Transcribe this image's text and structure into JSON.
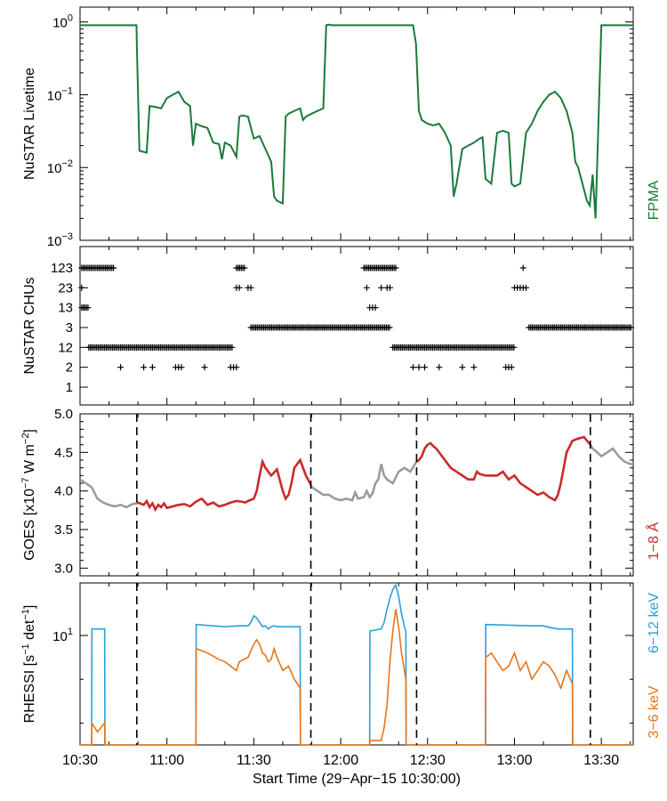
{
  "colors": {
    "livetime": "#1a7a3a",
    "goes_gray": "#999999",
    "goes_red": "#cc2a2a",
    "rhessi_high": "#2aa0d8",
    "rhessi_low": "#e8751a",
    "axis": "#000000"
  },
  "x_axis": {
    "label": "Start Time (29−Apr−15 10:30:00)",
    "range_min": [
      0,
      191
    ],
    "ticks": [
      {
        "t": 0,
        "label": "10:30"
      },
      {
        "t": 30,
        "label": "11:00"
      },
      {
        "t": 60,
        "label": "11:30"
      },
      {
        "t": 90,
        "label": "12:00"
      },
      {
        "t": 120,
        "label": "12:30"
      },
      {
        "t": 150,
        "label": "13:00"
      },
      {
        "t": 180,
        "label": "13:30"
      }
    ],
    "minor_step": 10
  },
  "chart_data": [
    {
      "type": "line",
      "name": "livetime",
      "ylabel": "NuSTAR Livetime",
      "side_label": "FPMA",
      "yscale": "log",
      "ylim": [
        0.001,
        1.6
      ],
      "yticks": [
        {
          "v": 1,
          "base": "10",
          "exp": "0"
        },
        {
          "v": 0.1,
          "base": "10",
          "exp": "−1"
        },
        {
          "v": 0.01,
          "base": "10",
          "exp": "−2"
        },
        {
          "v": 0.001,
          "base": "10",
          "exp": "−3"
        }
      ],
      "x": [
        0,
        19.5,
        19.6,
        20.5,
        23,
        24,
        26,
        28,
        30,
        32,
        34,
        36,
        38,
        39,
        40,
        42,
        44,
        46,
        48,
        49,
        50,
        52,
        54,
        55,
        56,
        58,
        60,
        62,
        64,
        66,
        67,
        68,
        70,
        71,
        72,
        74,
        76,
        77,
        78,
        80,
        82,
        84,
        85,
        86,
        87,
        88,
        90,
        100,
        115,
        116,
        117,
        118,
        120,
        122,
        124,
        126,
        128,
        129,
        130,
        132,
        134,
        136,
        138,
        139,
        140,
        142,
        144,
        146,
        148,
        149,
        150,
        152,
        154,
        156,
        158,
        160,
        162,
        164,
        166,
        168,
        170,
        171,
        172,
        174,
        175,
        176,
        177,
        178,
        180,
        191
      ],
      "values": [
        0.9,
        0.9,
        0.5,
        0.017,
        0.016,
        0.07,
        0.068,
        0.065,
        0.09,
        0.1,
        0.11,
        0.08,
        0.07,
        0.02,
        0.04,
        0.037,
        0.035,
        0.022,
        0.021,
        0.013,
        0.022,
        0.02,
        0.014,
        0.05,
        0.052,
        0.05,
        0.025,
        0.027,
        0.018,
        0.012,
        0.004,
        0.0035,
        0.0032,
        0.05,
        0.055,
        0.06,
        0.065,
        0.045,
        0.05,
        0.055,
        0.06,
        0.065,
        0.9,
        0.92,
        0.9,
        0.9,
        0.9,
        0.9,
        0.9,
        0.5,
        0.06,
        0.045,
        0.04,
        0.038,
        0.04,
        0.03,
        0.02,
        0.004,
        0.006,
        0.018,
        0.02,
        0.022,
        0.025,
        0.026,
        0.007,
        0.006,
        0.03,
        0.032,
        0.03,
        0.006,
        0.0055,
        0.006,
        0.03,
        0.04,
        0.06,
        0.08,
        0.1,
        0.11,
        0.09,
        0.06,
        0.03,
        0.012,
        0.01,
        0.005,
        0.0035,
        0.003,
        0.008,
        0.002,
        0.9,
        0.9
      ]
    },
    {
      "type": "scatter",
      "name": "chus",
      "ylabel": "NuSTAR CHUs",
      "categories": [
        "1",
        "2",
        "12",
        "3",
        "13",
        "23",
        "123"
      ],
      "marker": "+",
      "ranges": [
        {
          "level": "123",
          "from": 0,
          "to": 12
        },
        {
          "level": "13",
          "from": 0,
          "to": 3
        },
        {
          "level": "23",
          "from": 0,
          "to": 1
        },
        {
          "level": "12",
          "from": 3,
          "to": 53
        },
        {
          "level": "2",
          "points": [
            14,
            22,
            25,
            33,
            34,
            35,
            43,
            52,
            53,
            54
          ]
        },
        {
          "level": "123",
          "from": 54,
          "to": 57
        },
        {
          "level": "23",
          "points": [
            54,
            55,
            58,
            59
          ]
        },
        {
          "level": "3",
          "from": 59,
          "to": 107
        },
        {
          "level": "123",
          "from": 98,
          "to": 109
        },
        {
          "level": "23",
          "points": [
            99,
            104,
            106,
            107
          ]
        },
        {
          "level": "13",
          "points": [
            100,
            101,
            102
          ]
        },
        {
          "level": "12",
          "from": 108,
          "to": 150
        },
        {
          "level": "2",
          "points": [
            115,
            117,
            119,
            124,
            132,
            136,
            147,
            148,
            149
          ]
        },
        {
          "level": "123",
          "points": [
            153
          ]
        },
        {
          "level": "23",
          "points": [
            150,
            151,
            152,
            153,
            154
          ]
        },
        {
          "level": "3",
          "from": 155,
          "to": 191
        }
      ]
    },
    {
      "type": "line",
      "name": "goes",
      "ylabel": "GOES [x10",
      "ylabel_sup": "−7",
      "ylabel_mid": " W m",
      "ylabel_sup2": "−2",
      "ylabel_end": "]",
      "side_label": "1−8 Å",
      "ylim": [
        2.9,
        5.0
      ],
      "yticks": [
        3.0,
        3.5,
        4.0,
        4.5,
        5.0
      ],
      "yminor_step": 0.1,
      "dashed_x": [
        19.6,
        79.7,
        116.2,
        176.2
      ],
      "x": [
        0,
        2,
        4,
        6,
        8,
        10,
        12,
        14,
        16,
        18,
        19.6,
        20,
        22,
        23,
        24,
        25,
        26,
        27,
        28,
        29,
        30,
        32,
        34,
        36,
        38,
        40,
        42,
        44,
        46,
        48,
        50,
        52,
        54,
        56,
        57,
        58,
        60,
        61,
        62,
        63,
        64,
        65,
        66,
        68,
        70,
        71,
        72,
        73,
        74,
        76,
        78,
        79.7,
        80,
        82,
        84,
        86,
        88,
        90,
        92,
        94,
        95,
        96,
        98,
        99,
        100,
        101,
        102,
        103,
        104,
        105,
        106,
        108,
        110,
        112,
        114,
        116.2,
        117,
        118,
        119,
        120,
        121,
        122,
        123,
        124,
        126,
        128,
        130,
        132,
        134,
        136,
        137,
        138,
        140,
        142,
        144,
        146,
        148,
        150,
        152,
        154,
        156,
        158,
        160,
        161,
        162,
        163,
        164,
        165,
        166,
        168,
        170,
        172,
        174,
        176.2,
        177,
        178,
        180,
        182,
        184,
        186,
        188,
        190,
        191
      ],
      "values": [
        4.15,
        4.1,
        4.05,
        3.9,
        3.85,
        3.82,
        3.8,
        3.82,
        3.79,
        3.83,
        3.84,
        3.85,
        3.82,
        3.87,
        3.79,
        3.84,
        3.76,
        3.82,
        3.79,
        3.84,
        3.78,
        3.8,
        3.82,
        3.83,
        3.8,
        3.86,
        3.9,
        3.82,
        3.85,
        3.8,
        3.82,
        3.85,
        3.87,
        3.86,
        3.85,
        3.87,
        3.9,
        4.0,
        4.2,
        4.38,
        4.3,
        4.25,
        4.2,
        4.28,
        4.0,
        3.9,
        3.95,
        4.1,
        4.3,
        4.4,
        4.2,
        4.08,
        4.05,
        4.0,
        3.95,
        3.95,
        3.9,
        3.88,
        3.9,
        3.88,
        3.98,
        3.9,
        3.92,
        4.0,
        3.92,
        3.97,
        4.1,
        4.15,
        4.35,
        4.2,
        4.15,
        4.1,
        4.25,
        4.3,
        4.25,
        4.38,
        4.4,
        4.45,
        4.55,
        4.6,
        4.62,
        4.58,
        4.55,
        4.5,
        4.4,
        4.3,
        4.25,
        4.2,
        4.15,
        4.15,
        4.25,
        4.22,
        4.2,
        4.2,
        4.2,
        4.25,
        4.15,
        4.2,
        4.1,
        4.05,
        4.0,
        3.95,
        3.98,
        3.95,
        3.92,
        3.9,
        3.88,
        3.95,
        4.1,
        4.5,
        4.65,
        4.68,
        4.7,
        4.6,
        4.55,
        4.52,
        4.45,
        4.5,
        4.55,
        4.45,
        4.38,
        4.35,
        4.35
      ],
      "red_segments": [
        [
          19.6,
          79.7
        ],
        [
          116.2,
          176.2
        ]
      ]
    },
    {
      "type": "line",
      "name": "rhessi",
      "ylabel": "RHESSI [s",
      "ylabel_sup": "−1",
      "ylabel_mid": " det",
      "ylabel_sup2": "−1",
      "ylabel_end": "]",
      "yscale": "log",
      "ylim": [
        7.5,
        11.2
      ],
      "yticks": [
        {
          "v": 10,
          "base": "10",
          "exp": "1"
        }
      ],
      "dashed_x": [
        19.6,
        79.7,
        116.2,
        176.2
      ],
      "series": [
        {
          "name": "6−12 keV",
          "x": [
            0,
            4,
            4.1,
            8,
            8.5,
            8.6,
            9,
            40,
            40.1,
            50,
            55,
            58,
            59,
            60,
            61,
            62,
            63,
            64,
            65,
            66,
            67,
            68,
            70,
            76,
            76.1,
            100,
            100.1,
            104,
            105,
            106,
            107,
            108,
            109,
            110,
            111,
            112,
            112.5,
            112.6,
            140,
            140.1,
            156,
            160,
            161,
            165,
            170,
            170.1,
            191
          ],
          "values": [
            7.5,
            7.5,
            10.15,
            10.15,
            10.15,
            7.5,
            7.5,
            7.5,
            10.25,
            10.2,
            10.22,
            10.22,
            10.3,
            10.45,
            10.4,
            10.3,
            10.2,
            10.22,
            10.15,
            10.2,
            10.22,
            10.2,
            10.2,
            10.2,
            7.5,
            7.5,
            10.1,
            10.15,
            10.3,
            10.6,
            10.85,
            11.05,
            11.15,
            10.9,
            10.5,
            10.2,
            10.1,
            7.5,
            7.5,
            10.25,
            10.22,
            10.22,
            10.2,
            10.15,
            10.15,
            7.5,
            7.5
          ]
        },
        {
          "name": "3−6 keV",
          "x": [
            0,
            4,
            4.1,
            6,
            8.5,
            8.6,
            9,
            40,
            40.1,
            44,
            48,
            50,
            52,
            54,
            55,
            58,
            60,
            61,
            62,
            63,
            64,
            65,
            66,
            67,
            68,
            70,
            72,
            74,
            76,
            76.1,
            100,
            100.1,
            104,
            105,
            106,
            107,
            108,
            109,
            110,
            111,
            112,
            112.5,
            112.6,
            140,
            140.1,
            142,
            144,
            146,
            148,
            150,
            152,
            154,
            156,
            158,
            160,
            162,
            164,
            166,
            168,
            170,
            170.1,
            191
          ],
          "values": [
            7.5,
            7.5,
            8.0,
            7.8,
            8.0,
            7.5,
            7.5,
            7.5,
            9.7,
            9.6,
            9.45,
            9.4,
            9.3,
            9.2,
            9.4,
            9.5,
            9.8,
            9.9,
            9.8,
            9.6,
            9.55,
            9.4,
            9.45,
            9.7,
            9.5,
            9.2,
            9.3,
            9.0,
            8.8,
            7.5,
            7.5,
            7.6,
            7.6,
            7.9,
            8.4,
            9.4,
            10.1,
            10.6,
            10.2,
            9.6,
            9.2,
            9.0,
            7.5,
            7.5,
            9.5,
            9.6,
            9.4,
            9.2,
            9.3,
            9.6,
            9.2,
            9.4,
            9.0,
            9.2,
            9.4,
            9.3,
            9.1,
            8.8,
            9.2,
            8.9,
            7.5,
            7.5
          ]
        }
      ],
      "side_label_high": "6−12 keV",
      "side_label_low": "3−6 keV"
    }
  ]
}
